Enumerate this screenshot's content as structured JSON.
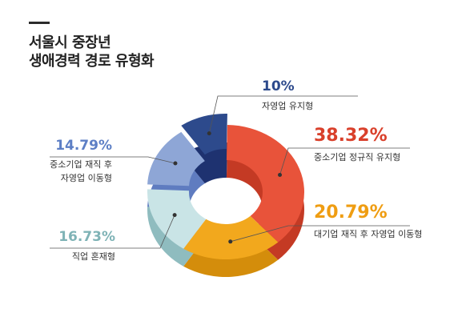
{
  "title": {
    "line1": "서울시 중장년",
    "line2": "생애경력 경로 유형화"
  },
  "chart_data": {
    "type": "pie",
    "style": "3d-donut",
    "slices": [
      {
        "label": "중소기업 정규직 유지형",
        "value": 38.32,
        "pct_text": "38.32%",
        "color": "#e8533a",
        "side_color": "#c43a24"
      },
      {
        "label": "대기업 재직 후 자영업 이동형",
        "value": 20.79,
        "pct_text": "20.79%",
        "color": "#f2a81d",
        "side_color": "#d48d0b"
      },
      {
        "label": "직업 혼재형",
        "value": 16.73,
        "pct_text": "16.73%",
        "color": "#c9e4e6",
        "side_color": "#8fbcbf"
      },
      {
        "label_lines": [
          "중소기업 재직 후",
          "자영업 이동형"
        ],
        "value": 14.79,
        "pct_text": "14.79%",
        "color": "#8ea6d6",
        "side_color": "#5f7cc0"
      },
      {
        "label": "자영업 유지형",
        "value": 10,
        "pct_text": "10%",
        "color": "#2d4a8c",
        "side_color": "#1e3270"
      }
    ],
    "pct_colors": {
      "38.32": "#d9402b",
      "20.79": "#ef9d12",
      "16.73": "#7fb3b6",
      "14.79": "#5d7fc5",
      "10": "#2d4a8c"
    }
  }
}
